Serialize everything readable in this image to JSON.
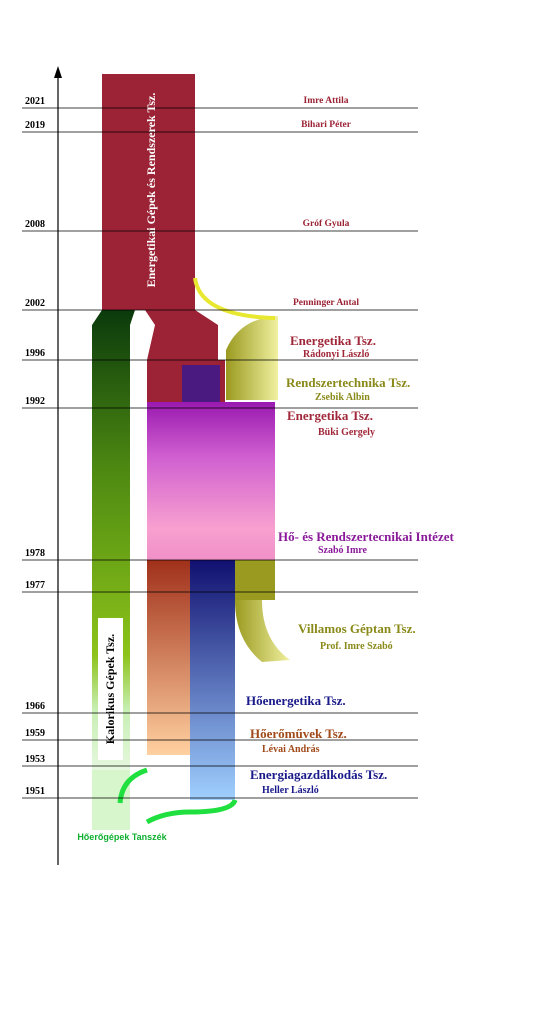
{
  "rows": [
    {
      "year": "2021",
      "name": "Imre Attila"
    },
    {
      "year": "2019",
      "name": "Bihari Péter"
    },
    {
      "year": "2008",
      "name": "Gróf Gyula"
    },
    {
      "year": "2002",
      "name": "Penninger Antal"
    },
    {
      "year": "1996"
    },
    {
      "year": "1992"
    },
    {
      "year": "1978"
    },
    {
      "year": "1977"
    },
    {
      "year": "1966"
    },
    {
      "year": "1959"
    },
    {
      "year": "1953"
    },
    {
      "year": "1951"
    }
  ],
  "departments": [
    {
      "label": "Energetika Tsz.",
      "head": "Rádonyi László"
    },
    {
      "label": "Rendszertechnika Tsz.",
      "head": "Zsebik Albin"
    },
    {
      "label": "Energetika Tsz.",
      "head": "Büki Gergely"
    },
    {
      "label": "Hő- és Rendszertecnikai Intézet",
      "head": "Szabó Imre"
    },
    {
      "label": "Villamos Géptan Tsz.",
      "head": "Prof. Imre Szabó"
    },
    {
      "label": "Hőenergetika Tsz."
    },
    {
      "label": "Hőerőművek Tsz.",
      "head": "Lévai András"
    },
    {
      "label": "Energiagazdálkodás Tsz.",
      "head": "Heller László"
    }
  ],
  "streams": {
    "top": "Energetikai Gépek és Rendszerek Tsz.",
    "left": "Kalorikus Gépek Tsz.",
    "origin": "Hőerőgépek Tanszék"
  }
}
